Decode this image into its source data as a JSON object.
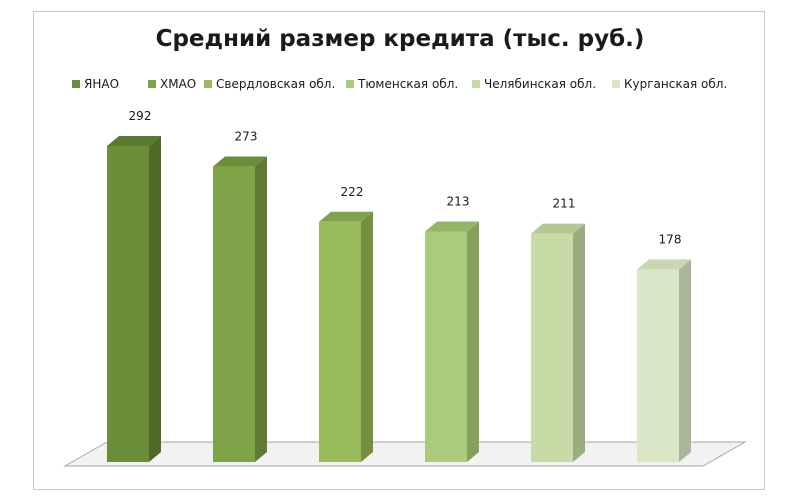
{
  "chart_data": {
    "type": "bar",
    "title": "Средний размер кредита (тыс. руб.)",
    "categories": [
      "ЯНАО",
      "ХМАО",
      "Свердловская обл.",
      "Тюменская обл.",
      "Челябинская обл.",
      "Курганская обл."
    ],
    "values": [
      292,
      273,
      222,
      213,
      211,
      178
    ],
    "colors": [
      "#6b8e3a",
      "#7fa347",
      "#97bb5b",
      "#aacb7b",
      "#c6dba6",
      "#d9e7c7"
    ],
    "side_colors": [
      "#4f6a28",
      "#5f7b33",
      "#728f42",
      "#86a05c",
      "#9aad82",
      "#a8b79b"
    ],
    "top_colors": [
      "#5a7a2e",
      "#6b8e3a",
      "#81a34d",
      "#95b66a",
      "#b3c991",
      "#c7d6b3"
    ],
    "ylim": [
      0,
      300
    ],
    "legend_position": "top",
    "grid": false,
    "style": "3d-column"
  }
}
